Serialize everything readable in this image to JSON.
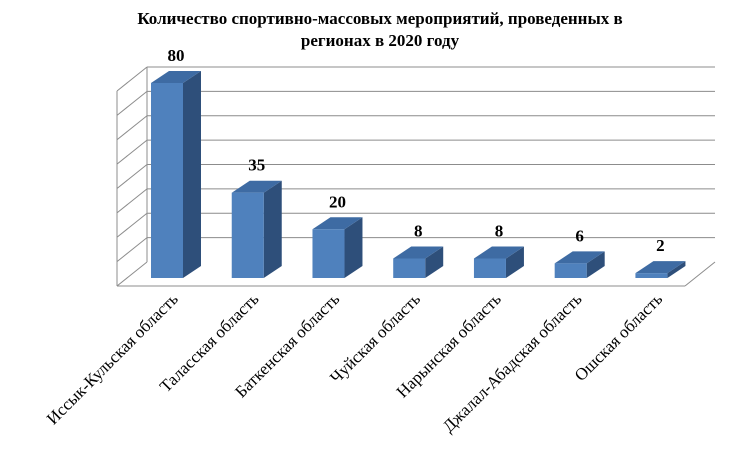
{
  "chart_data": {
    "type": "bar",
    "title_lines": [
      "Количество спортивно-массовых мероприятий, проведенных в",
      "регионах в 2020 году"
    ],
    "categories": [
      "Иссык-Кульская область",
      "Таласская область",
      "Баткенская область",
      "Чуйская область",
      "Нарынская область",
      "Джалал-Абадская область",
      "Ошская область"
    ],
    "values": [
      80,
      35,
      20,
      8,
      8,
      6,
      2
    ],
    "ylim": [
      0,
      80
    ],
    "grid": true,
    "three_d": true,
    "colors": {
      "front": "#4F81BD",
      "side": "#2E4F7A",
      "top": "#3E6BA3",
      "grid": "#8C8C8C",
      "axis": "#8C8C8C"
    }
  }
}
